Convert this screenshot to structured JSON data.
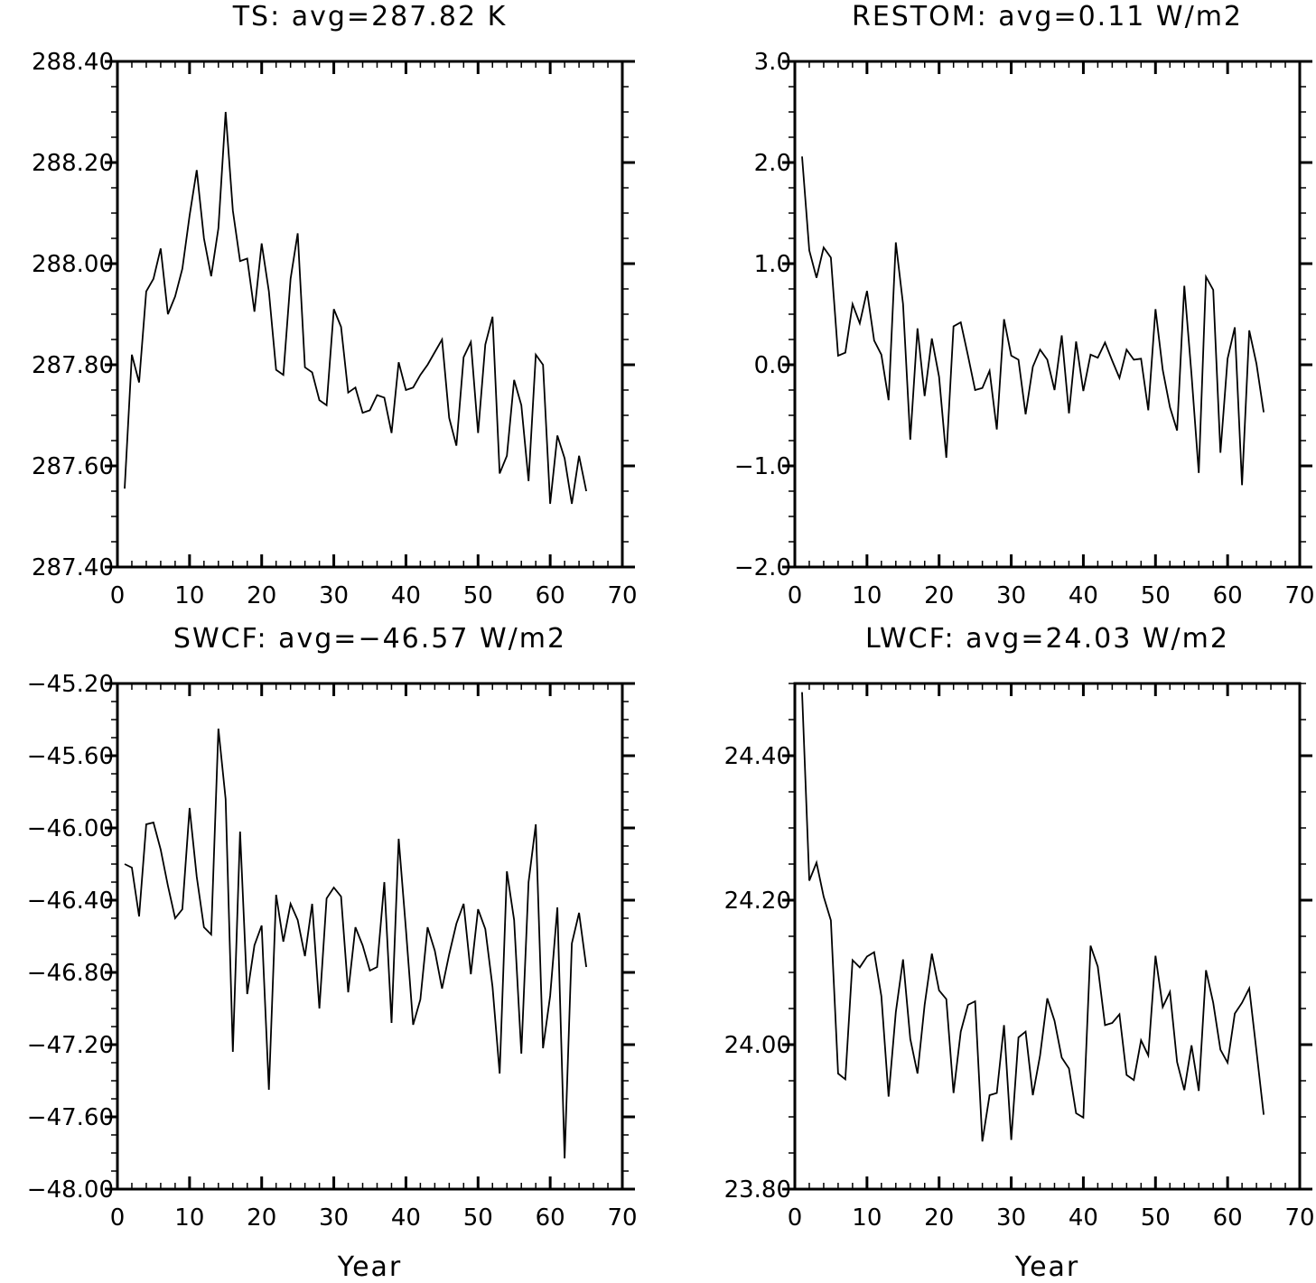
{
  "chart_data": [
    {
      "type": "line",
      "title": "TS: avg=287.82 K",
      "xlabel": "",
      "ylabel": "",
      "xlim": [
        0,
        70
      ],
      "ylim": [
        287.4,
        288.4
      ],
      "xticks": [
        0,
        10,
        20,
        30,
        40,
        50,
        60,
        70
      ],
      "xtick_labels": [
        "0",
        "10",
        "20",
        "30",
        "40",
        "50",
        "60",
        "70"
      ],
      "yticks": [
        287.4,
        287.6,
        287.8,
        288.0,
        288.2,
        288.4
      ],
      "ytick_labels": [
        "287.40",
        "287.60",
        "287.80",
        "288.00",
        "288.20",
        "288.40"
      ],
      "grid": false,
      "series": [
        {
          "x": [
            1,
            2,
            3,
            4,
            5,
            6,
            7,
            8,
            9,
            10,
            11,
            12,
            13,
            14,
            15,
            16,
            17,
            18,
            19,
            20,
            21,
            22,
            23,
            24,
            25,
            26,
            27,
            28,
            29,
            30,
            31,
            32,
            33,
            34,
            35,
            36,
            37,
            38,
            39,
            40,
            41,
            42,
            43,
            44,
            45,
            46,
            47,
            48,
            49,
            50,
            51,
            52,
            53,
            54,
            55,
            56,
            57,
            58,
            59,
            60,
            61,
            62,
            63,
            64,
            65
          ],
          "y": [
            287.555,
            287.82,
            287.765,
            287.945,
            287.97,
            288.03,
            287.9,
            287.935,
            287.99,
            288.095,
            288.185,
            288.05,
            287.975,
            288.07,
            288.3,
            288.105,
            288.005,
            288.01,
            287.905,
            288.04,
            287.945,
            287.79,
            287.78,
            287.97,
            288.06,
            287.795,
            287.785,
            287.73,
            287.72,
            287.91,
            287.875,
            287.745,
            287.755,
            287.705,
            287.71,
            287.74,
            287.735,
            287.665,
            287.805,
            287.75,
            287.755,
            287.78,
            287.8,
            287.825,
            287.85,
            287.695,
            287.64,
            287.815,
            287.845,
            287.665,
            287.84,
            287.895,
            287.585,
            287.62,
            287.77,
            287.72,
            287.57,
            287.82,
            287.8,
            287.525,
            287.66,
            287.615,
            287.525,
            287.62,
            287.55
          ]
        }
      ]
    },
    {
      "type": "line",
      "title": "RESTOM: avg=0.11 W/m2",
      "xlabel": "",
      "ylabel": "",
      "xlim": [
        0,
        70
      ],
      "ylim": [
        -2.0,
        3.0
      ],
      "xticks": [
        0,
        10,
        20,
        30,
        40,
        50,
        60,
        70
      ],
      "xtick_labels": [
        "0",
        "10",
        "20",
        "30",
        "40",
        "50",
        "60",
        "70"
      ],
      "yticks": [
        -2.0,
        -1.0,
        0.0,
        1.0,
        2.0,
        3.0
      ],
      "ytick_labels": [
        "−2.0",
        "−1.0",
        "0.0",
        "1.0",
        "2.0",
        "3.0"
      ],
      "grid": false,
      "series": [
        {
          "x": [
            1,
            2,
            3,
            4,
            5,
            6,
            7,
            8,
            9,
            10,
            11,
            12,
            13,
            14,
            15,
            16,
            17,
            18,
            19,
            20,
            21,
            22,
            23,
            24,
            25,
            26,
            27,
            28,
            29,
            30,
            31,
            32,
            33,
            34,
            35,
            36,
            37,
            38,
            39,
            40,
            41,
            42,
            43,
            44,
            45,
            46,
            47,
            48,
            49,
            50,
            51,
            52,
            53,
            54,
            55,
            56,
            57,
            58,
            59,
            60,
            61,
            62,
            63,
            64,
            65
          ],
          "y": [
            2.06,
            1.13,
            0.86,
            1.16,
            1.06,
            0.09,
            0.12,
            0.6,
            0.41,
            0.73,
            0.24,
            0.1,
            -0.35,
            1.21,
            0.6,
            -0.74,
            0.36,
            -0.31,
            0.26,
            -0.12,
            -0.92,
            0.38,
            0.42,
            0.09,
            -0.25,
            -0.23,
            -0.06,
            -0.64,
            0.45,
            0.09,
            0.05,
            -0.49,
            -0.02,
            0.15,
            0.05,
            -0.25,
            0.29,
            -0.48,
            0.23,
            -0.26,
            0.1,
            0.07,
            0.22,
            0.04,
            -0.13,
            0.15,
            0.05,
            0.06,
            -0.45,
            0.55,
            -0.05,
            -0.42,
            -0.65,
            0.78,
            -0.1,
            -1.07,
            0.87,
            0.74,
            -0.87,
            0.06,
            0.37,
            -1.19,
            0.34,
            0.01,
            -0.47
          ]
        }
      ]
    },
    {
      "type": "line",
      "title": "SWCF: avg=−46.57 W/m2",
      "xlabel": "Year",
      "ylabel": "",
      "xlim": [
        0,
        70
      ],
      "ylim": [
        -48.0,
        -45.2
      ],
      "xticks": [
        0,
        10,
        20,
        30,
        40,
        50,
        60,
        70
      ],
      "xtick_labels": [
        "0",
        "10",
        "20",
        "30",
        "40",
        "50",
        "60",
        "70"
      ],
      "yticks": [
        -48.0,
        -47.6,
        -47.2,
        -46.8,
        -46.4,
        -46.0,
        -45.6,
        -45.2
      ],
      "ytick_labels": [
        "−48.00",
        "−47.60",
        "−47.20",
        "−46.80",
        "−46.40",
        "−46.00",
        "−45.60",
        "−45.20"
      ],
      "grid": false,
      "series": [
        {
          "x": [
            1,
            2,
            3,
            4,
            5,
            6,
            7,
            8,
            9,
            10,
            11,
            12,
            13,
            14,
            15,
            16,
            17,
            18,
            19,
            20,
            21,
            22,
            23,
            24,
            25,
            26,
            27,
            28,
            29,
            30,
            31,
            32,
            33,
            34,
            35,
            36,
            37,
            38,
            39,
            40,
            41,
            42,
            43,
            44,
            45,
            46,
            47,
            48,
            49,
            50,
            51,
            52,
            53,
            54,
            55,
            56,
            57,
            58,
            59,
            60,
            61,
            62,
            63,
            64,
            65
          ],
          "y": [
            -46.2,
            -46.22,
            -46.49,
            -45.98,
            -45.97,
            -46.12,
            -46.32,
            -46.5,
            -46.45,
            -45.89,
            -46.27,
            -46.55,
            -46.59,
            -45.45,
            -45.84,
            -47.24,
            -46.02,
            -46.92,
            -46.65,
            -46.54,
            -47.45,
            -46.37,
            -46.63,
            -46.42,
            -46.51,
            -46.71,
            -46.42,
            -47.0,
            -46.39,
            -46.33,
            -46.38,
            -46.91,
            -46.55,
            -46.65,
            -46.79,
            -46.77,
            -46.3,
            -47.08,
            -46.06,
            -46.56,
            -47.09,
            -46.95,
            -46.55,
            -46.68,
            -46.89,
            -46.7,
            -46.53,
            -46.42,
            -46.81,
            -46.45,
            -46.56,
            -46.88,
            -47.36,
            -46.24,
            -46.51,
            -47.25,
            -46.3,
            -45.98,
            -47.22,
            -46.93,
            -46.44,
            -47.83,
            -46.64,
            -46.47,
            -46.77
          ]
        }
      ]
    },
    {
      "type": "line",
      "title": "LWCF: avg=24.03 W/m2",
      "xlabel": "Year",
      "ylabel": "",
      "xlim": [
        0,
        70
      ],
      "ylim": [
        23.8,
        24.5
      ],
      "xticks": [
        0,
        10,
        20,
        30,
        40,
        50,
        60,
        70
      ],
      "xtick_labels": [
        "0",
        "10",
        "20",
        "30",
        "40",
        "50",
        "60",
        "70"
      ],
      "yticks": [
        23.8,
        24.0,
        24.2,
        24.4
      ],
      "ytick_labels": [
        "23.80",
        "24.00",
        "24.20",
        "24.40"
      ],
      "grid": false,
      "series": [
        {
          "x": [
            1,
            2,
            3,
            4,
            5,
            6,
            7,
            8,
            9,
            10,
            11,
            12,
            13,
            14,
            15,
            16,
            17,
            18,
            19,
            20,
            21,
            22,
            23,
            24,
            25,
            26,
            27,
            28,
            29,
            30,
            31,
            32,
            33,
            34,
            35,
            36,
            37,
            38,
            39,
            40,
            41,
            42,
            43,
            44,
            45,
            46,
            47,
            48,
            49,
            50,
            51,
            52,
            53,
            54,
            55,
            56,
            57,
            58,
            59,
            60,
            61,
            62,
            63,
            64,
            65
          ],
          "y": [
            24.488,
            24.227,
            24.252,
            24.205,
            24.172,
            23.96,
            23.952,
            24.117,
            24.107,
            24.122,
            24.128,
            24.067,
            23.928,
            24.045,
            24.118,
            24.008,
            23.96,
            24.055,
            24.126,
            24.075,
            24.063,
            23.933,
            24.018,
            24.055,
            24.06,
            23.866,
            23.93,
            23.933,
            24.027,
            23.868,
            24.01,
            24.018,
            23.93,
            23.985,
            24.064,
            24.033,
            23.982,
            23.967,
            23.905,
            23.899,
            24.137,
            24.108,
            24.027,
            24.03,
            24.042,
            23.958,
            23.951,
            24.006,
            23.985,
            24.123,
            24.052,
            24.073,
            23.976,
            23.937,
            23.999,
            23.936,
            24.103,
            24.058,
            23.993,
            23.975,
            24.043,
            24.058,
            24.078,
            23.991,
            23.903
          ]
        }
      ]
    }
  ]
}
